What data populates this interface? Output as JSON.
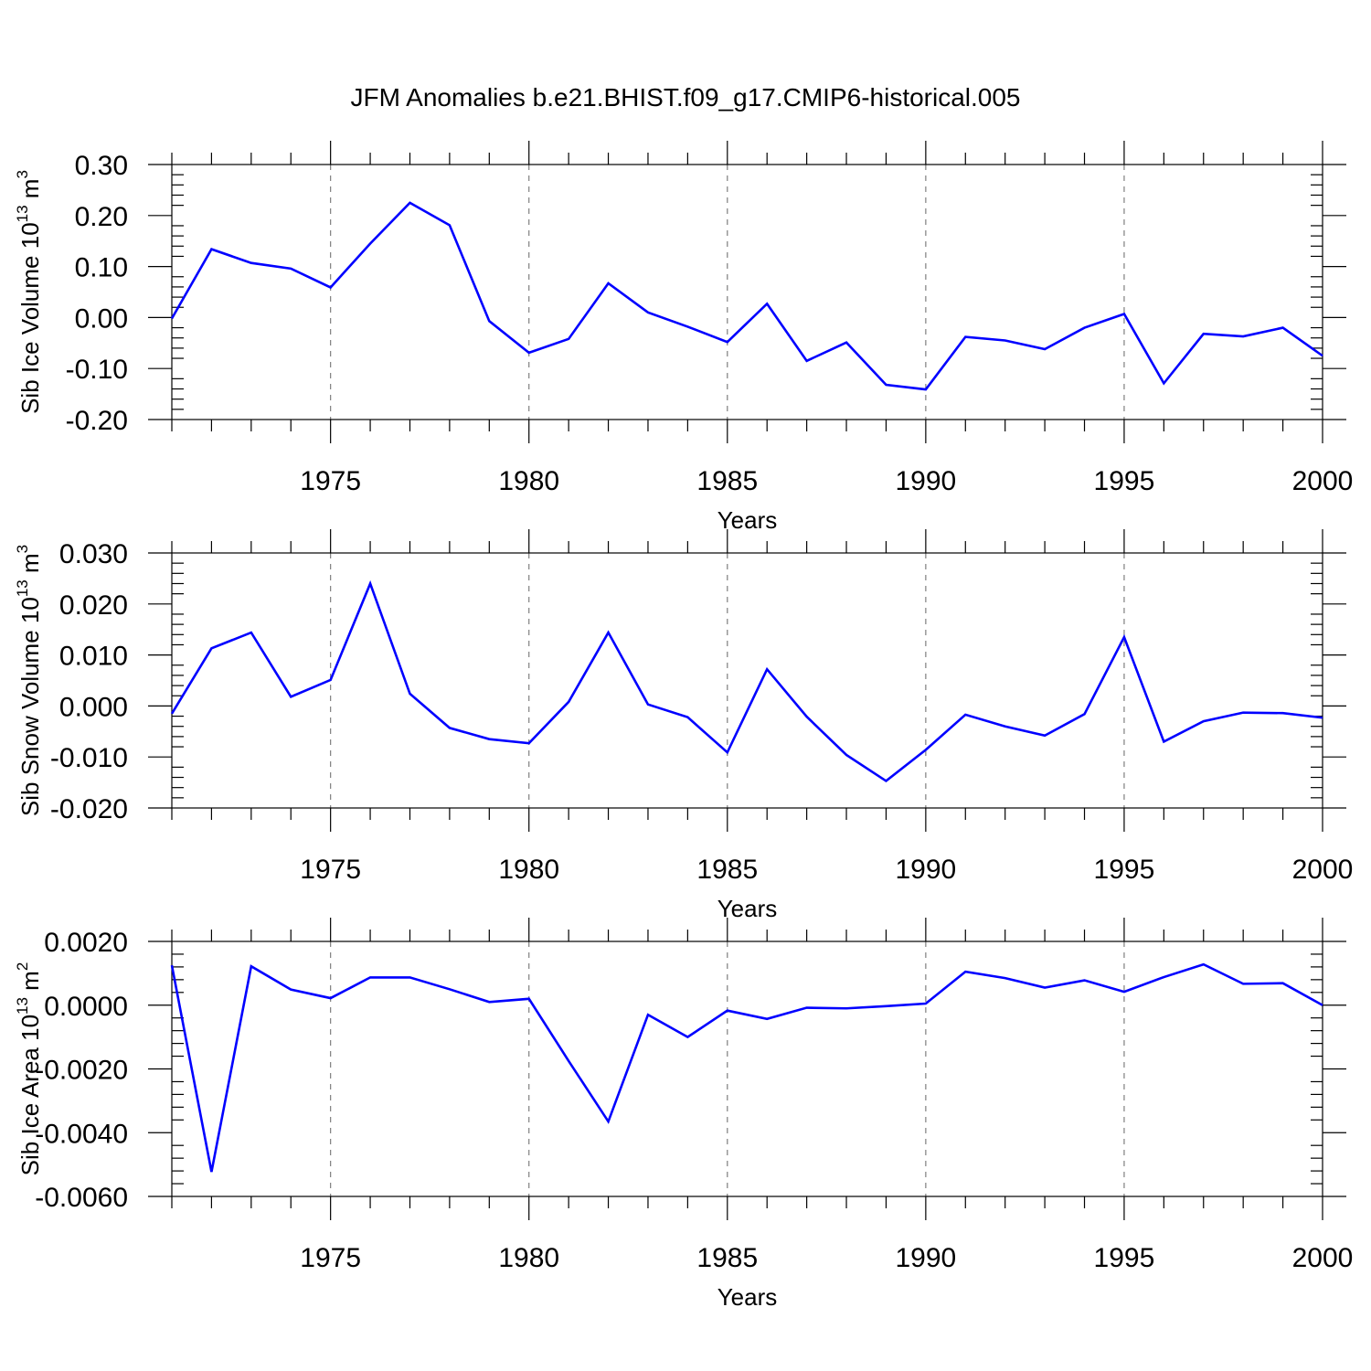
{
  "title": "JFM Anomalies b.e21.BHIST.f09_g17.CMIP6-historical.005",
  "chart_data": [
    {
      "type": "line",
      "name": "panel-ice-volume",
      "title": "JFM Anomalies b.e21.BHIST.f09_g17.CMIP6-historical.005",
      "xlabel": "Years",
      "ylabel": "Sib Ice Volume 10",
      "ylabel_sup": "13",
      "ylabel_unit": " m",
      "ylabel_unit_sup": "3",
      "xlim": [
        1971,
        2000
      ],
      "ylim": [
        -0.2,
        0.3
      ],
      "yticks": [
        -0.2,
        -0.1,
        0.0,
        0.1,
        0.2,
        0.3
      ],
      "ytick_labels": [
        "-0.20",
        "-0.10",
        "0.00",
        "0.10",
        "0.20",
        "0.30"
      ],
      "xticks": [
        1975,
        1980,
        1985,
        1990,
        1995,
        2000
      ],
      "xtick_labels": [
        "1975",
        "1980",
        "1985",
        "1990",
        "1995",
        "2000"
      ],
      "grid": "dashed vertical at labeled years",
      "color": "#0000ff",
      "x": [
        1971,
        1972,
        1973,
        1974,
        1975,
        1976,
        1977,
        1978,
        1979,
        1980,
        1981,
        1982,
        1983,
        1984,
        1985,
        1986,
        1987,
        1988,
        1989,
        1990,
        1991,
        1992,
        1993,
        1994,
        1995,
        1996,
        1997,
        1998,
        1999,
        2000
      ],
      "values": [
        -0.002,
        0.134,
        0.107,
        0.096,
        0.059,
        0.145,
        0.225,
        0.181,
        -0.007,
        -0.069,
        -0.042,
        0.067,
        0.01,
        -0.018,
        -0.048,
        0.027,
        -0.085,
        -0.049,
        -0.132,
        -0.141,
        -0.038,
        -0.045,
        -0.062,
        -0.02,
        0.007,
        -0.129,
        -0.032,
        -0.037,
        -0.02,
        -0.075
      ]
    },
    {
      "type": "line",
      "name": "panel-snow-volume",
      "xlabel": "Years",
      "ylabel": "Sib Snow Volume 10",
      "ylabel_sup": "13",
      "ylabel_unit": " m",
      "ylabel_unit_sup": "3",
      "xlim": [
        1971,
        2000
      ],
      "ylim": [
        -0.02,
        0.03
      ],
      "yticks": [
        -0.02,
        -0.01,
        0.0,
        0.01,
        0.02,
        0.03
      ],
      "ytick_labels": [
        "-0.020",
        "-0.010",
        "0.000",
        "0.010",
        "0.020",
        "0.030"
      ],
      "xticks": [
        1975,
        1980,
        1985,
        1990,
        1995,
        2000
      ],
      "xtick_labels": [
        "1975",
        "1980",
        "1985",
        "1990",
        "1995",
        "2000"
      ],
      "grid": "dashed vertical at labeled years",
      "color": "#0000ff",
      "x": [
        1971,
        1972,
        1973,
        1974,
        1975,
        1976,
        1977,
        1978,
        1979,
        1980,
        1981,
        1982,
        1983,
        1984,
        1985,
        1986,
        1987,
        1988,
        1989,
        1990,
        1991,
        1992,
        1993,
        1994,
        1995,
        1996,
        1997,
        1998,
        1999,
        2000
      ],
      "values": [
        -0.0015,
        0.0113,
        0.0144,
        0.0018,
        0.0051,
        0.024,
        0.0024,
        -0.0043,
        -0.0065,
        -0.0073,
        0.0008,
        0.0144,
        0.0003,
        -0.0022,
        -0.0091,
        0.0072,
        -0.0021,
        -0.0096,
        -0.0147,
        -0.0086,
        -0.0017,
        -0.004,
        -0.0058,
        -0.0016,
        0.0135,
        -0.007,
        -0.003,
        -0.0013,
        -0.0014,
        -0.0023
      ]
    },
    {
      "type": "line",
      "name": "panel-ice-area",
      "xlabel": "Years",
      "ylabel": "Sib Ice Area 10",
      "ylabel_sup": "13",
      "ylabel_unit": " m",
      "ylabel_unit_sup": "2",
      "xlim": [
        1971,
        2000
      ],
      "ylim": [
        -0.006,
        0.002
      ],
      "yticks": [
        -0.006,
        -0.004,
        -0.002,
        0.0,
        0.002
      ],
      "ytick_labels": [
        "-0.0060",
        "-0.0040",
        "-0.0020",
        "0.0000",
        "0.0020"
      ],
      "xticks": [
        1975,
        1980,
        1985,
        1990,
        1995,
        2000
      ],
      "xtick_labels": [
        "1975",
        "1980",
        "1985",
        "1990",
        "1995",
        "2000"
      ],
      "grid": "dashed vertical at labeled years",
      "color": "#0000ff",
      "x": [
        1971,
        1972,
        1973,
        1974,
        1975,
        1976,
        1977,
        1978,
        1979,
        1980,
        1981,
        1982,
        1983,
        1984,
        1985,
        1986,
        1987,
        1988,
        1989,
        1990,
        1991,
        1992,
        1993,
        1994,
        1995,
        1996,
        1997,
        1998,
        1999,
        2000
      ],
      "values": [
        0.00125,
        -0.00523,
        0.00122,
        0.00049,
        0.00022,
        0.00087,
        0.00087,
        0.0005,
        0.0001,
        0.0002,
        -0.00175,
        -0.00365,
        -0.0003,
        -0.001,
        -0.00017,
        -0.00043,
        -8e-05,
        -0.0001,
        -3e-05,
        5e-05,
        0.00105,
        0.00085,
        0.00055,
        0.00078,
        0.00042,
        0.00088,
        0.00128,
        0.00067,
        0.00069,
        0.0
      ]
    }
  ]
}
